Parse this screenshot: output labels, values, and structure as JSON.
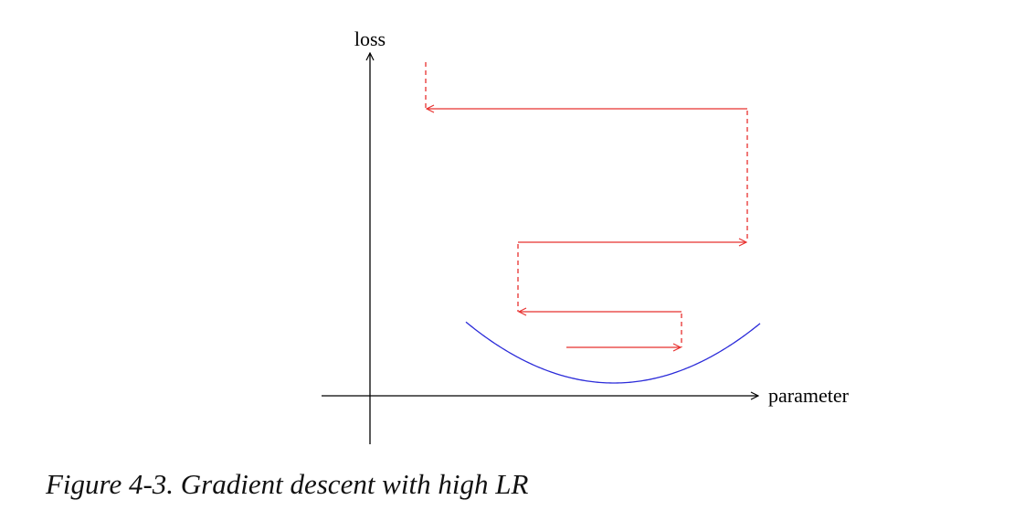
{
  "diagram": {
    "y_axis_label": "loss",
    "x_axis_label": "parameter",
    "curve_color": "#2b2bd9",
    "step_color": "#e8302e",
    "axis_color": "#000000"
  },
  "caption": "Figure 4-3. Gradient descent with high LR"
}
